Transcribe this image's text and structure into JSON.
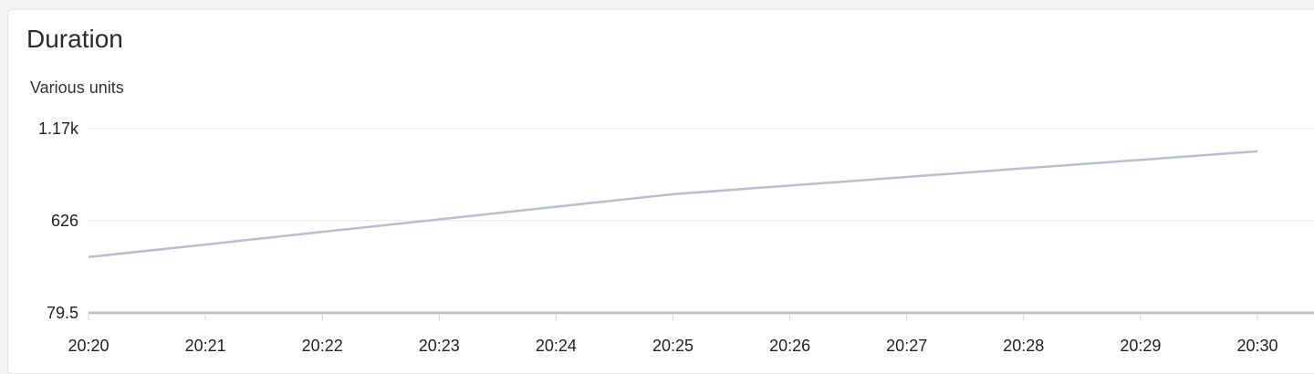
{
  "panel": {
    "title": "Duration",
    "units_label": "Various units"
  },
  "chart_data": {
    "type": "line",
    "title": "Duration",
    "ylabel": "Various units",
    "xlabel": "",
    "x": [
      "20:20",
      "20:21",
      "20:22",
      "20:23",
      "20:24",
      "20:25",
      "20:26",
      "20:27",
      "20:28",
      "20:29",
      "20:30"
    ],
    "ylim": [
      79.5,
      1170
    ],
    "yticks": [
      {
        "value": 1170,
        "label": "1.17k"
      },
      {
        "value": 626,
        "label": "626"
      },
      {
        "value": 79.5,
        "label": "79.5"
      }
    ],
    "grid": true,
    "legend": "none",
    "series": [
      {
        "color": "#b8bdd2",
        "values": [
          410,
          484,
          559,
          633,
          708,
          782,
          833,
          884,
          935,
          985,
          1036
        ]
      },
      {
        "color": "#f0a58f",
        "values": [
          79.5,
          79.5,
          79.5,
          79.5,
          79.5,
          79.5,
          79.5,
          79.5,
          79.5,
          79.5,
          79.5
        ]
      },
      {
        "color": "#b8bdd2",
        "values": [
          79.5,
          79.5,
          79.5,
          79.5,
          79.5,
          79.5,
          79.5,
          79.5,
          79.5,
          79.5,
          79.5
        ]
      }
    ],
    "colors": {
      "grid": "#e8e8e8",
      "axis": "#d0d0d0"
    }
  }
}
